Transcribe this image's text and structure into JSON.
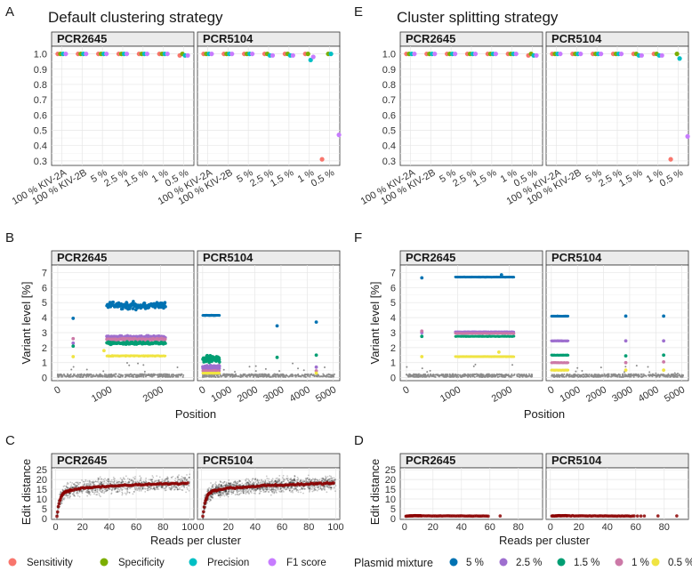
{
  "colors": {
    "sensitivity": "#f8766d",
    "specificity": "#7cae00",
    "precision": "#00bfc4",
    "f1": "#c77cff",
    "mix5": "#0072b2",
    "mix2_5": "#9e6fcf",
    "mix1_5": "#009e73",
    "mix1": "#cc79a7",
    "mix0_5": "#f0e442",
    "noise": "#8c8c8c",
    "trend": "#8b0000"
  },
  "titles": {
    "left": "Default clustering strategy",
    "right": "Cluster splitting strategy"
  },
  "letters": {
    "A": "A",
    "B": "B",
    "C": "C",
    "D": "D",
    "E": "E",
    "F": "F"
  },
  "facets": {
    "pcr1": "PCR2645",
    "pcr2": "PCR5104"
  },
  "legend": {
    "metrics": [
      "Sensitivity",
      "Specificity",
      "Precision",
      "F1 score"
    ],
    "mixture_title": "Plasmid mixture",
    "mixtures": [
      "5 %",
      "2.5 %",
      "1.5 %",
      "1 %",
      "0.5 %"
    ]
  },
  "chart_data": [
    {
      "id": "A",
      "type": "scatter",
      "title": "Default clustering strategy",
      "categories": [
        "100 % KIV-2A",
        "100 % KIV-2B",
        "5 %",
        "2.5 %",
        "1.5 %",
        "1 %",
        "0.5 %"
      ],
      "yticks": [
        "0.3",
        "0.4",
        "0.5",
        "0.6",
        "0.7",
        "0.8",
        "0.9",
        "1.0"
      ],
      "ylim": [
        0.27,
        1.05
      ],
      "facets": [
        {
          "name": "PCR2645",
          "series": [
            {
              "name": "Sensitivity",
              "values": [
                1,
                1,
                1,
                1,
                1,
                1,
                0.99
              ]
            },
            {
              "name": "Specificity",
              "values": [
                1,
                1,
                1,
                1,
                1,
                1,
                1
              ]
            },
            {
              "name": "Precision",
              "values": [
                1,
                1,
                1,
                1,
                1,
                1,
                0.99
              ]
            },
            {
              "name": "F1 score",
              "values": [
                1,
                1,
                1,
                1,
                1,
                1,
                0.99
              ]
            }
          ]
        },
        {
          "name": "PCR5104",
          "series": [
            {
              "name": "Sensitivity",
              "values": [
                1,
                1,
                1,
                1,
                1,
                1,
                0.31
              ]
            },
            {
              "name": "Specificity",
              "values": [
                1,
                1,
                1,
                1,
                1,
                1,
                1
              ]
            },
            {
              "name": "Precision",
              "values": [
                1,
                1,
                1,
                0.99,
                0.99,
                0.96,
                1
              ]
            },
            {
              "name": "F1 score",
              "values": [
                1,
                1,
                1,
                0.99,
                0.99,
                0.98,
                0.47
              ]
            }
          ]
        }
      ]
    },
    {
      "id": "E",
      "type": "scatter",
      "title": "Cluster splitting strategy",
      "categories": [
        "100 % KIV-2A",
        "100 % KIV-2B",
        "5 %",
        "2.5 %",
        "1.5 %",
        "1 %",
        "0.5 %"
      ],
      "yticks": [
        "0.3",
        "0.4",
        "0.5",
        "0.6",
        "0.7",
        "0.8",
        "0.9",
        "1.0"
      ],
      "ylim": [
        0.27,
        1.05
      ],
      "facets": [
        {
          "name": "PCR2645",
          "series": [
            {
              "name": "Sensitivity",
              "values": [
                1,
                1,
                1,
                1,
                1,
                1,
                0.99
              ]
            },
            {
              "name": "Specificity",
              "values": [
                1,
                1,
                1,
                1,
                1,
                1,
                1
              ]
            },
            {
              "name": "Precision",
              "values": [
                1,
                1,
                1,
                1,
                1,
                1,
                0.99
              ]
            },
            {
              "name": "F1 score",
              "values": [
                1,
                1,
                1,
                1,
                1,
                1,
                0.99
              ]
            }
          ]
        },
        {
          "name": "PCR5104",
          "series": [
            {
              "name": "Sensitivity",
              "values": [
                1,
                1,
                1,
                1,
                1,
                1,
                0.31
              ]
            },
            {
              "name": "Specificity",
              "values": [
                1,
                1,
                1,
                1,
                1,
                1,
                1
              ]
            },
            {
              "name": "Precision",
              "values": [
                1,
                1,
                1,
                1,
                0.99,
                0.99,
                0.97
              ]
            },
            {
              "name": "F1 score",
              "values": [
                1,
                1,
                1,
                1,
                0.99,
                0.99,
                0.46
              ]
            }
          ]
        }
      ]
    },
    {
      "id": "B",
      "type": "scatter",
      "xlabel": "Position",
      "ylabel": "Variant level [%]",
      "ylim": [
        -0.2,
        7.5
      ],
      "yticks": [
        "0",
        "1",
        "2",
        "3",
        "4",
        "5",
        "6",
        "7"
      ],
      "facets": [
        {
          "name": "PCR2645",
          "xlim": [
            -120,
            2650
          ],
          "xticks": [
            "0",
            "1000",
            "2000"
          ],
          "noise_level": 0.2,
          "bands": [
            {
              "mixture": "5 %",
              "from": 950,
              "to": 2100,
              "level": 4.8,
              "spread": 0.35,
              "outliers": [
                [
                  300,
                  3.95
                ]
              ]
            },
            {
              "mixture": "2.5 %",
              "from": 950,
              "to": 2100,
              "level": 2.7,
              "spread": 0.15,
              "outliers": [
                [
                  300,
                  2.3
                ]
              ]
            },
            {
              "mixture": "1 %",
              "from": 950,
              "to": 2100,
              "level": 2.55,
              "spread": 0.08,
              "outliers": [
                [
                  300,
                  2.6
                ]
              ]
            },
            {
              "mixture": "1.5 %",
              "from": 950,
              "to": 2100,
              "level": 2.3,
              "spread": 0.12,
              "outliers": [
                [
                  300,
                  2.1
                ]
              ]
            },
            {
              "mixture": "0.5 %",
              "from": 950,
              "to": 2100,
              "level": 1.45,
              "spread": 0.04,
              "outliers": [
                [
                  300,
                  1.4
                ],
                [
                  900,
                  1.8
                ]
              ]
            }
          ]
        },
        {
          "name": "PCR5104",
          "xlim": [
            -200,
            5250
          ],
          "xticks": [
            "0",
            "1000",
            "2000",
            "3000",
            "4000",
            "5000"
          ],
          "noise_level": 0.2,
          "bands": [
            {
              "mixture": "5 %",
              "from": 0,
              "to": 650,
              "level": 4.15,
              "spread": 0.03,
              "outliers": [
                [
                  2850,
                  3.45
                ],
                [
                  4350,
                  3.7
                ]
              ]
            },
            {
              "mixture": "1.5 %",
              "from": 0,
              "to": 650,
              "level": 1.2,
              "spread": 0.35,
              "outliers": [
                [
                  2850,
                  1.35
                ],
                [
                  4350,
                  1.5
                ]
              ]
            },
            {
              "mixture": "2.5 %",
              "from": 0,
              "to": 650,
              "level": 0.7,
              "spread": 0.15,
              "outliers": [
                [
                  4350,
                  0.7
                ]
              ]
            },
            {
              "mixture": "1 %",
              "from": 0,
              "to": 650,
              "level": 0.45,
              "spread": 0.05,
              "outliers": [
                [
                  4350,
                  0.45
                ]
              ]
            },
            {
              "mixture": "0.5 %",
              "from": 0,
              "to": 650,
              "level": 0.3,
              "spread": 0.03,
              "outliers": [
                [
                  4350,
                  0.3
                ]
              ]
            }
          ]
        }
      ]
    },
    {
      "id": "F",
      "type": "scatter",
      "xlabel": "Position",
      "ylabel": "Variant level [%]",
      "ylim": [
        -0.2,
        7.5
      ],
      "yticks": [
        "0",
        "1",
        "2",
        "3",
        "4",
        "5",
        "6",
        "7"
      ],
      "facets": [
        {
          "name": "PCR2645",
          "xlim": [
            -120,
            2650
          ],
          "xticks": [
            "0",
            "1000",
            "2000"
          ],
          "noise_level": 0.2,
          "bands": [
            {
              "mixture": "5 %",
              "from": 950,
              "to": 2100,
              "level": 6.7,
              "spread": 0.02,
              "outliers": [
                [
                  300,
                  6.65
                ],
                [
                  1850,
                  6.85
                ]
              ]
            },
            {
              "mixture": "2.5 %",
              "from": 950,
              "to": 2100,
              "level": 3.05,
              "spread": 0.02,
              "outliers": [
                [
                  300,
                  3.0
                ]
              ]
            },
            {
              "mixture": "1 %",
              "from": 950,
              "to": 2100,
              "level": 2.95,
              "spread": 0.02,
              "outliers": [
                [
                  300,
                  3.1
                ]
              ]
            },
            {
              "mixture": "1.5 %",
              "from": 950,
              "to": 2100,
              "level": 2.75,
              "spread": 0.02,
              "outliers": [
                [
                  300,
                  2.75
                ]
              ]
            },
            {
              "mixture": "0.5 %",
              "from": 950,
              "to": 2100,
              "level": 1.4,
              "spread": 0.02,
              "outliers": [
                [
                  300,
                  1.4
                ],
                [
                  1800,
                  1.7
                ]
              ]
            }
          ]
        },
        {
          "name": "PCR5104",
          "xlim": [
            -200,
            5250
          ],
          "xticks": [
            "0",
            "1000",
            "2000",
            "3000",
            "4000",
            "5000"
          ],
          "noise_level": 0.2,
          "bands": [
            {
              "mixture": "5 %",
              "from": 0,
              "to": 650,
              "level": 4.1,
              "spread": 0.02,
              "outliers": [
                [
                  2850,
                  4.1
                ],
                [
                  4300,
                  4.1
                ]
              ]
            },
            {
              "mixture": "2.5 %",
              "from": 0,
              "to": 650,
              "level": 2.45,
              "spread": 0.02,
              "outliers": [
                [
                  2850,
                  2.45
                ],
                [
                  4300,
                  2.45
                ]
              ]
            },
            {
              "mixture": "1.5 %",
              "from": 0,
              "to": 650,
              "level": 1.5,
              "spread": 0.02,
              "outliers": [
                [
                  2850,
                  1.45
                ],
                [
                  4300,
                  1.5
                ]
              ]
            },
            {
              "mixture": "1 %",
              "from": 0,
              "to": 650,
              "level": 1.0,
              "spread": 0.02,
              "outliers": [
                [
                  2850,
                  1.0
                ],
                [
                  4300,
                  1.05
                ]
              ]
            },
            {
              "mixture": "0.5 %",
              "from": 0,
              "to": 650,
              "level": 0.5,
              "spread": 0.02,
              "outliers": [
                [
                  2850,
                  0.5
                ],
                [
                  4300,
                  0.5
                ]
              ]
            }
          ]
        }
      ]
    },
    {
      "id": "C",
      "type": "scatter",
      "xlabel": "Reads per cluster",
      "ylabel": "Edit distance",
      "xlim": [
        -3,
        103
      ],
      "ylim": [
        -0.5,
        26
      ],
      "xticks": [
        "0",
        "20",
        "40",
        "60",
        "80",
        "100"
      ],
      "yticks": [
        "0",
        "5",
        "10",
        "15",
        "20",
        "25"
      ],
      "trend": {
        "x": [
          1,
          2,
          3,
          4,
          5,
          6,
          8,
          10,
          15,
          20,
          30,
          40,
          50,
          60,
          70,
          80,
          90,
          100
        ],
        "y": [
          1,
          6,
          9,
          11,
          12.2,
          13,
          13.8,
          14.3,
          15,
          15.5,
          16.1,
          16.6,
          16.9,
          17.2,
          17.5,
          17.7,
          17.9,
          18.1
        ]
      },
      "facets": [
        {
          "name": "PCR2645"
        },
        {
          "name": "PCR5104"
        }
      ]
    },
    {
      "id": "D",
      "type": "scatter",
      "xlabel": "Reads per cluster",
      "ylabel": "Edit distance",
      "xlim": [
        -3,
        97
      ],
      "ylim": [
        -0.5,
        26
      ],
      "xticks": [
        "0",
        "20",
        "40",
        "60",
        "80"
      ],
      "yticks": [
        "0",
        "5",
        "10",
        "15",
        "20",
        "25"
      ],
      "trend": {
        "x": [
          1,
          5,
          10,
          20,
          40,
          60,
          80,
          95
        ],
        "y": [
          1.2,
          1.4,
          1.4,
          1.3,
          1.3,
          1.2,
          1.3,
          1.3
        ]
      },
      "facets": [
        {
          "name": "PCR2645"
        },
        {
          "name": "PCR5104"
        }
      ]
    }
  ]
}
